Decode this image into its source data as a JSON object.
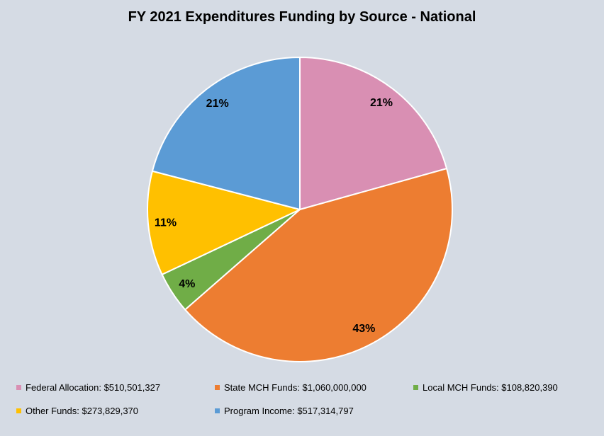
{
  "page": {
    "background_color": "#D5DBE4"
  },
  "chart_data": {
    "type": "pie",
    "title": "FY 2021 Expenditures Funding by Source - National",
    "start_angle_deg": 0,
    "direction": "clockwise",
    "legend_position": "bottom",
    "slice_border_color": "#FFFFFF",
    "percent_label_color": "#000000",
    "series": [
      {
        "name": "Federal Allocation",
        "value": 510501327,
        "value_display": "$510,501,327",
        "percent_label": "21%",
        "color": "#D98FB3",
        "legend_label": "Federal Allocation: $510,501,327"
      },
      {
        "name": "State MCH Funds",
        "value": 1060000000,
        "value_display": "$1,060,000,000",
        "percent_label": "43%",
        "color": "#ED7D31",
        "legend_label": "State MCH Funds: $1,060,000,000"
      },
      {
        "name": "Local MCH Funds",
        "value": 108820390,
        "value_display": "$108,820,390",
        "percent_label": "4%",
        "color": "#70AD47",
        "legend_label": "Local MCH Funds: $108,820,390"
      },
      {
        "name": "Other Funds",
        "value": 273829370,
        "value_display": "$273,829,370",
        "percent_label": "11%",
        "color": "#FFC000",
        "legend_label": "Other Funds: $273,829,370"
      },
      {
        "name": "Program Income",
        "value": 517314797,
        "value_display": "$517,314,797",
        "percent_label": "21%",
        "color": "#5B9BD5",
        "legend_label": "Program Income: $517,314,797"
      }
    ]
  }
}
